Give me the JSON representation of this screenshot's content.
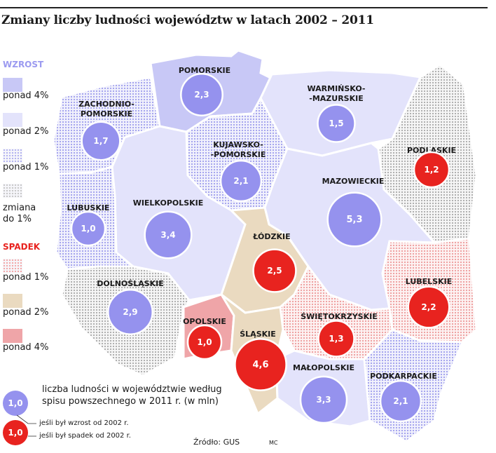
{
  "title": "Zmiany liczby ludności województw w latach 2002 – 2011",
  "legend": {
    "increase_heading": "WZROST",
    "decrease_heading": "SPADEK",
    "increase_items": [
      {
        "label": "ponad 4%",
        "color": "#c8c8f6",
        "pattern": "solid"
      },
      {
        "label": "ponad 2%",
        "color": "#e3e3fb",
        "pattern": "solid"
      },
      {
        "label": "ponad 1%",
        "color": "#b3b3f0",
        "pattern": "dots"
      }
    ],
    "neutral_item": {
      "label_line1": "zmiana",
      "label_line2": "do 1%",
      "color": "#c9c9c9",
      "pattern": "dots"
    },
    "decrease_items": [
      {
        "label": "ponad 1%",
        "color": "#f3a9a9",
        "pattern": "dots"
      },
      {
        "label": "ponad 2%",
        "color": "#eadac0",
        "pattern": "solid"
      },
      {
        "label": "ponad 4%",
        "color": "#efa5a8",
        "pattern": "solid"
      }
    ],
    "circle_key": {
      "sample_value": "1,0",
      "text_line1": "liczba ludności w województwie według",
      "text_line2": "spisu powszechnego w 2011 r. (w mln)",
      "increase_note": "jeśli był wzrost od 2002 r.",
      "decrease_note": "jeśli był spadek od 2002 r."
    }
  },
  "colors": {
    "increase_circle": "#9592ee",
    "decrease_circle": "#e8231f"
  },
  "regions": [
    {
      "id": "pomorskie",
      "name_lines": [
        "POMORSKIE"
      ],
      "population": "2,3",
      "trend": "increase",
      "fill": "strong-up"
    },
    {
      "id": "warminsko-mazurskie",
      "name_lines": [
        "WARMIŃSKO-",
        "-MAZURSKIE"
      ],
      "population": "1,5",
      "trend": "increase",
      "fill": "light-up"
    },
    {
      "id": "zachodniopomorskie",
      "name_lines": [
        "ZACHODNIO-",
        "POMORSKIE"
      ],
      "population": "1,7",
      "trend": "increase",
      "fill": "dots-up"
    },
    {
      "id": "kujawsko-pomorskie",
      "name_lines": [
        "KUJAWSKO-",
        "-POMORSKIE"
      ],
      "population": "2,1",
      "trend": "increase",
      "fill": "dots-up"
    },
    {
      "id": "podlaskie",
      "name_lines": [
        "PODLASKIE"
      ],
      "population": "1,2",
      "trend": "decrease",
      "fill": "neutral"
    },
    {
      "id": "mazowieckie",
      "name_lines": [
        "MAZOWIECKIE"
      ],
      "population": "5,3",
      "trend": "increase",
      "fill": "light-up"
    },
    {
      "id": "lubuskie",
      "name_lines": [
        "LUBUSKIE"
      ],
      "population": "1,0",
      "trend": "increase",
      "fill": "dots-up"
    },
    {
      "id": "wielkopolskie",
      "name_lines": [
        "WIELKOPOLSKIE"
      ],
      "population": "3,4",
      "trend": "increase",
      "fill": "light-up"
    },
    {
      "id": "lodzkie",
      "name_lines": [
        "ŁÓDZKIE"
      ],
      "population": "2,5",
      "trend": "decrease",
      "fill": "mid-down"
    },
    {
      "id": "lubelskie",
      "name_lines": [
        "LUBELSKIE"
      ],
      "population": "2,2",
      "trend": "decrease",
      "fill": "dots-down"
    },
    {
      "id": "dolnoslaskie",
      "name_lines": [
        "DOLNOŚLĄSKIE"
      ],
      "population": "2,9",
      "trend": "increase",
      "fill": "neutral"
    },
    {
      "id": "opolskie",
      "name_lines": [
        "OPOLSKIE"
      ],
      "population": "1,0",
      "trend": "decrease",
      "fill": "strong-down"
    },
    {
      "id": "swietokrzyskie",
      "name_lines": [
        "ŚWIĘTOKRZYSKIE"
      ],
      "population": "1,3",
      "trend": "decrease",
      "fill": "dots-down"
    },
    {
      "id": "slaskie",
      "name_lines": [
        "ŚLĄSKIE"
      ],
      "population": "4,6",
      "trend": "decrease",
      "fill": "mid-down"
    },
    {
      "id": "malopolskie",
      "name_lines": [
        "MAŁOPOLSKIE"
      ],
      "population": "3,3",
      "trend": "increase",
      "fill": "light-up"
    },
    {
      "id": "podkarpackie",
      "name_lines": [
        "PODKARPACKIE"
      ],
      "population": "2,1",
      "trend": "increase",
      "fill": "dots-up"
    }
  ],
  "source": "Źródło: GUS",
  "author": "MC"
}
